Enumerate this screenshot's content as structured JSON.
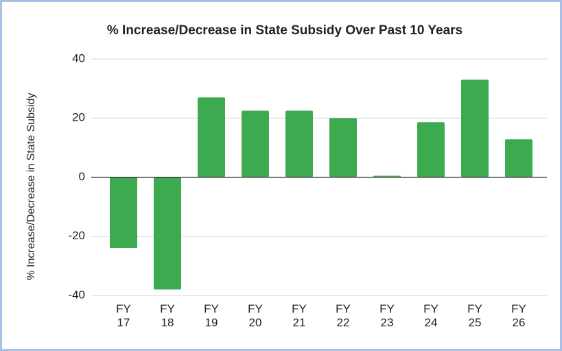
{
  "chart_data": {
    "type": "bar",
    "title": "% Increase/Decrease in State Subsidy Over Past 10 Years",
    "y_label": "% Increase/Decrease in State Subsidy",
    "categories": [
      "FY 17",
      "FY 18",
      "FY 19",
      "FY 20",
      "FY 21",
      "FY 22",
      "FY 23",
      "FY 24",
      "FY 25",
      "FY 26"
    ],
    "values": [
      -24,
      -38,
      27,
      22.5,
      22.5,
      20,
      0.5,
      18.6,
      33,
      12.8
    ],
    "color": "#3daa50",
    "ylim": [
      -40,
      40
    ],
    "yticks": [
      -40,
      -20,
      0,
      20,
      40
    ],
    "grid": true
  }
}
